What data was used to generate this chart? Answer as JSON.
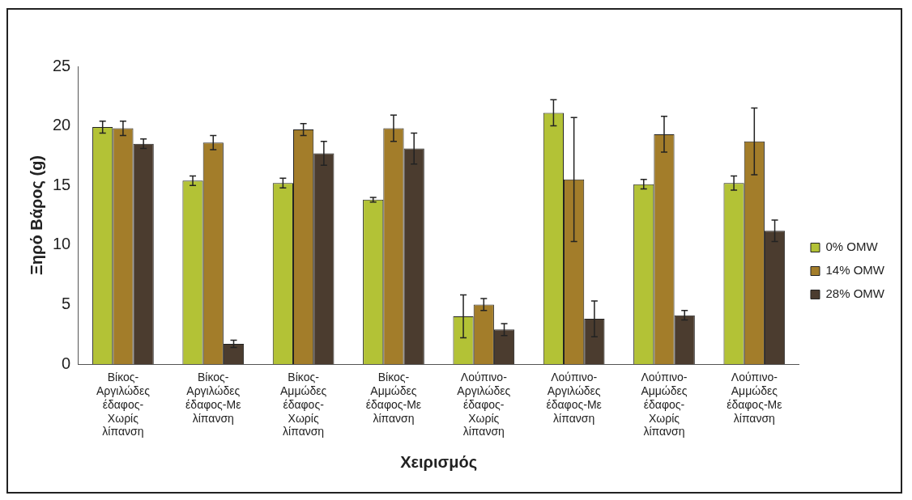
{
  "chart_data": {
    "type": "bar",
    "xlabel": "Χειρισμός",
    "ylabel": "Ξηρό Βάρος (g)",
    "categories": [
      "Βίκος-Αργιλώδες έδαφος-Χωρίς λίπανση",
      "Βίκος-Αργιλώδες έδαφος-Με λίπανση",
      "Βίκος-Αμμώδες έδαφος-Χωρίς λίπανση",
      "Βίκος-Αμμώδες έδαφος-Με λίπανση",
      "Λούπινο-Αργιλώδες έδαφος-Χωρίς λίπανση",
      "Λούπινο-Αργιλώδες έδαφος-Με λίπανση",
      "Λούπινο-Αμμώδες έδαφος-Χωρίς λίπανση",
      "Λούπινο-Αμμώδες έδαφος-Με λίπανση"
    ],
    "series": [
      {
        "name": "0% OMW",
        "color": "#b3c236",
        "values": [
          19.9,
          15.4,
          15.2,
          13.8,
          4.0,
          21.1,
          15.1,
          15.2
        ],
        "errors": [
          0.5,
          0.4,
          0.4,
          0.2,
          1.8,
          1.1,
          0.4,
          0.6
        ]
      },
      {
        "name": "14% OMW",
        "color": "#a37d2a",
        "values": [
          19.8,
          18.6,
          19.7,
          19.8,
          5.0,
          15.5,
          19.3,
          18.7
        ],
        "errors": [
          0.6,
          0.6,
          0.5,
          1.1,
          0.5,
          5.2,
          1.5,
          2.8
        ]
      },
      {
        "name": "28% OMW",
        "color": "#4b3c2f",
        "values": [
          18.5,
          1.7,
          17.7,
          18.1,
          2.9,
          3.8,
          4.1,
          11.2
        ],
        "errors": [
          0.4,
          0.3,
          1.0,
          1.3,
          0.5,
          1.5,
          0.4,
          0.9
        ]
      }
    ],
    "ylim": [
      0,
      25
    ],
    "yticks": [
      0,
      5,
      10,
      15,
      20,
      25
    ],
    "grid": false,
    "legend": "right"
  }
}
